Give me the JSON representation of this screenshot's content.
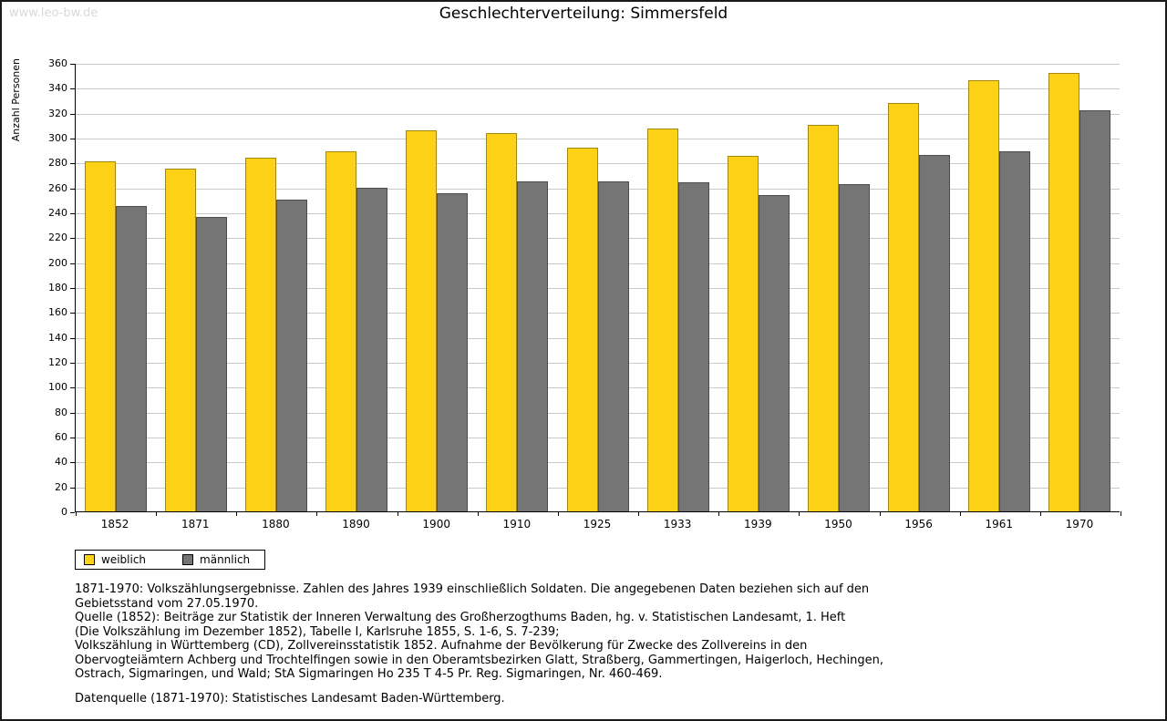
{
  "page": {
    "watermark": "www.leo-bw.de"
  },
  "chart_data": {
    "type": "bar",
    "title": "Geschlechterverteilung: Simmersfeld",
    "ylabel": "Anzahl Personen",
    "xlabel": "",
    "categories": [
      "1852",
      "1871",
      "1880",
      "1890",
      "1900",
      "1910",
      "1925",
      "1933",
      "1939",
      "1950",
      "1956",
      "1961",
      "1970"
    ],
    "series": [
      {
        "name": "weiblich",
        "color": "#FCD116",
        "values": [
          281,
          275,
          284,
          289,
          306,
          304,
          292,
          307,
          285,
          310,
          328,
          346,
          352
        ]
      },
      {
        "name": "männlich",
        "color": "#757575",
        "values": [
          245,
          236,
          250,
          260,
          255,
          265,
          265,
          264,
          254,
          263,
          286,
          289,
          322
        ]
      }
    ],
    "ylim": [
      0,
      360
    ],
    "ytick_step": 20,
    "grid": true,
    "legend_position": "bottom-left"
  },
  "footer": {
    "lines": [
      "1871-1970: Volkszählungsergebnisse. Zahlen des Jahres 1939 einschließlich Soldaten. Die angegebenen Daten beziehen sich auf den",
      "Gebietsstand vom 27.05.1970.",
      "Quelle (1852): Beiträge zur Statistik der Inneren Verwaltung des Großherzogthums Baden, hg. v. Statistischen Landesamt, 1. Heft",
      "(Die Volkszählung im Dezember 1852), Tabelle I, Karlsruhe 1855, S. 1-6, S. 7-239;",
      "Volkszählung in Württemberg (CD), Zollvereinsstatistik 1852. Aufnahme der Bevölkerung für Zwecke des Zollvereins in den",
      "Obervogteiämtern Achberg und Trochtelfingen sowie in den Oberamtsbezirken Glatt, Straßberg, Gammertingen, Haigerloch, Hechingen,",
      "Ostrach, Sigmaringen, und Wald; StA Sigmaringen Ho 235 T 4-5 Pr. Reg. Sigmaringen, Nr. 460-469.",
      "",
      "Datenquelle (1871-1970): Statistisches Landesamt Baden-Württemberg."
    ]
  }
}
